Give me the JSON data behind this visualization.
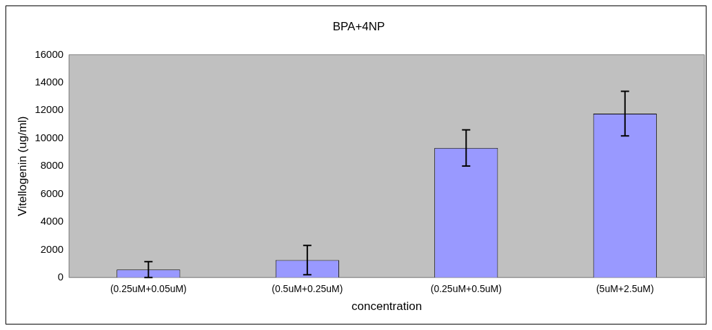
{
  "chart_data": {
    "type": "bar",
    "title": "BPA+4NP",
    "xlabel": "concentration",
    "ylabel": "Vitellogenin (ug/ml)",
    "categories": [
      "(0.25uM+0.05uM)",
      "(0.5uM+0.25uM)",
      "(0.25uM+0.5uM)",
      "(5uM+2.5uM)"
    ],
    "values": [
      570,
      1250,
      9300,
      11770
    ],
    "errors": [
      570,
      1050,
      1300,
      1600
    ],
    "color": "#9999ff",
    "ylim": [
      0,
      16000
    ],
    "yticks": [
      0,
      2000,
      4000,
      6000,
      8000,
      10000,
      12000,
      14000,
      16000
    ]
  }
}
